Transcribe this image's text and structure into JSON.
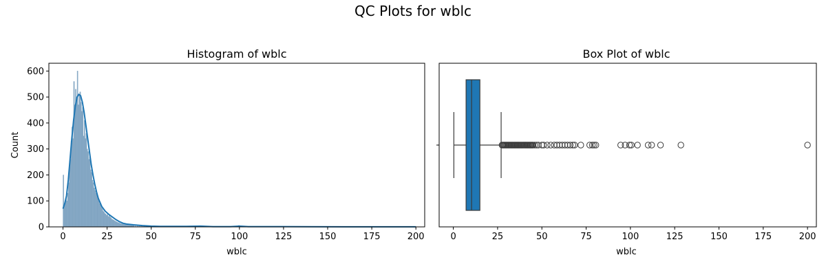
{
  "figure": {
    "suptitle": "QC Plots for wblc"
  },
  "chart_data": [
    {
      "type": "histogram",
      "title": "Histogram of wblc",
      "xlabel": "wblc",
      "ylabel": "Count",
      "xlim": [
        -8,
        205
      ],
      "ylim": [
        0,
        630
      ],
      "xticks": [
        0,
        25,
        50,
        75,
        100,
        125,
        150,
        175,
        200
      ],
      "yticks": [
        0,
        100,
        200,
        300,
        400,
        500,
        600
      ],
      "bar_color": "#7aa0bf",
      "kde_color": "#1f77b4",
      "bins": [
        {
          "x": 0.0,
          "count": 200
        },
        {
          "x": 0.5,
          "count": 85
        },
        {
          "x": 1.0,
          "count": 95
        },
        {
          "x": 1.5,
          "count": 110
        },
        {
          "x": 2.0,
          "count": 100
        },
        {
          "x": 2.5,
          "count": 130
        },
        {
          "x": 3.0,
          "count": 170
        },
        {
          "x": 3.5,
          "count": 230
        },
        {
          "x": 4.0,
          "count": 260
        },
        {
          "x": 4.5,
          "count": 330
        },
        {
          "x": 5.0,
          "count": 385
        },
        {
          "x": 5.5,
          "count": 340
        },
        {
          "x": 6.0,
          "count": 560
        },
        {
          "x": 6.5,
          "count": 470
        },
        {
          "x": 7.0,
          "count": 530
        },
        {
          "x": 7.5,
          "count": 500
        },
        {
          "x": 8.0,
          "count": 600
        },
        {
          "x": 8.5,
          "count": 470
        },
        {
          "x": 9.0,
          "count": 510
        },
        {
          "x": 9.5,
          "count": 520
        },
        {
          "x": 10.0,
          "count": 480
        },
        {
          "x": 10.5,
          "count": 445
        },
        {
          "x": 11.0,
          "count": 460
        },
        {
          "x": 11.5,
          "count": 350
        },
        {
          "x": 12.0,
          "count": 410
        },
        {
          "x": 12.5,
          "count": 340
        },
        {
          "x": 13.0,
          "count": 360
        },
        {
          "x": 13.5,
          "count": 300
        },
        {
          "x": 14.0,
          "count": 290
        },
        {
          "x": 14.5,
          "count": 260
        },
        {
          "x": 15.0,
          "count": 270
        },
        {
          "x": 15.5,
          "count": 220
        },
        {
          "x": 16.0,
          "count": 210
        },
        {
          "x": 16.5,
          "count": 180
        },
        {
          "x": 17.0,
          "count": 170
        },
        {
          "x": 17.5,
          "count": 150
        },
        {
          "x": 18.0,
          "count": 140
        },
        {
          "x": 18.5,
          "count": 130
        },
        {
          "x": 19.0,
          "count": 125
        },
        {
          "x": 19.5,
          "count": 110
        },
        {
          "x": 20.0,
          "count": 100
        },
        {
          "x": 20.5,
          "count": 90
        },
        {
          "x": 21.0,
          "count": 85
        },
        {
          "x": 21.5,
          "count": 75
        },
        {
          "x": 22.0,
          "count": 70
        },
        {
          "x": 22.5,
          "count": 62
        },
        {
          "x": 23.0,
          "count": 58
        },
        {
          "x": 23.5,
          "count": 52
        },
        {
          "x": 24.0,
          "count": 50
        },
        {
          "x": 24.5,
          "count": 45
        },
        {
          "x": 25.0,
          "count": 48
        },
        {
          "x": 25.5,
          "count": 40
        },
        {
          "x": 26.0,
          "count": 44
        },
        {
          "x": 26.5,
          "count": 38
        },
        {
          "x": 27.0,
          "count": 35
        },
        {
          "x": 27.5,
          "count": 30
        },
        {
          "x": 28.0,
          "count": 28
        },
        {
          "x": 28.5,
          "count": 26
        },
        {
          "x": 29.0,
          "count": 24
        },
        {
          "x": 29.5,
          "count": 22
        },
        {
          "x": 30.0,
          "count": 20
        },
        {
          "x": 30.5,
          "count": 18
        },
        {
          "x": 31.0,
          "count": 17
        },
        {
          "x": 31.5,
          "count": 15
        },
        {
          "x": 32.0,
          "count": 14
        },
        {
          "x": 32.5,
          "count": 13
        },
        {
          "x": 33.0,
          "count": 12
        },
        {
          "x": 33.5,
          "count": 11
        },
        {
          "x": 34.0,
          "count": 10
        },
        {
          "x": 34.5,
          "count": 10
        },
        {
          "x": 35.0,
          "count": 9
        },
        {
          "x": 35.5,
          "count": 9
        },
        {
          "x": 36.0,
          "count": 8
        },
        {
          "x": 36.5,
          "count": 8
        },
        {
          "x": 37.0,
          "count": 7
        },
        {
          "x": 37.5,
          "count": 7
        },
        {
          "x": 38.0,
          "count": 7
        },
        {
          "x": 38.5,
          "count": 6
        },
        {
          "x": 39.0,
          "count": 6
        },
        {
          "x": 39.5,
          "count": 6
        },
        {
          "x": 40.0,
          "count": 5
        },
        {
          "x": 41.0,
          "count": 5
        },
        {
          "x": 42.0,
          "count": 4
        },
        {
          "x": 43.0,
          "count": 4
        },
        {
          "x": 44.0,
          "count": 4
        },
        {
          "x": 45.0,
          "count": 3
        },
        {
          "x": 46.0,
          "count": 3
        },
        {
          "x": 47.0,
          "count": 3
        },
        {
          "x": 48.0,
          "count": 2
        },
        {
          "x": 49.0,
          "count": 2
        },
        {
          "x": 50.0,
          "count": 3
        },
        {
          "x": 52.0,
          "count": 2
        },
        {
          "x": 55.0,
          "count": 2
        },
        {
          "x": 58.0,
          "count": 2
        },
        {
          "x": 60.0,
          "count": 3
        },
        {
          "x": 63.0,
          "count": 2
        },
        {
          "x": 66.0,
          "count": 2
        },
        {
          "x": 70.0,
          "count": 1
        },
        {
          "x": 75.0,
          "count": 2
        },
        {
          "x": 78.0,
          "count": 3
        },
        {
          "x": 80.0,
          "count": 2
        },
        {
          "x": 95.0,
          "count": 1
        },
        {
          "x": 99.5,
          "count": 6
        },
        {
          "x": 104.0,
          "count": 1
        },
        {
          "x": 110.0,
          "count": 1
        },
        {
          "x": 112.0,
          "count": 1
        },
        {
          "x": 117.0,
          "count": 1
        },
        {
          "x": 128.0,
          "count": 1
        },
        {
          "x": 199.5,
          "count": 1
        }
      ],
      "bin_width": 0.5,
      "kde": [
        [
          0.0,
          70
        ],
        [
          1.0,
          90
        ],
        [
          2.0,
          120
        ],
        [
          3.0,
          180
        ],
        [
          4.0,
          260
        ],
        [
          5.0,
          340
        ],
        [
          6.0,
          410
        ],
        [
          7.0,
          465
        ],
        [
          8.0,
          500
        ],
        [
          9.0,
          510
        ],
        [
          10.0,
          505
        ],
        [
          11.0,
          480
        ],
        [
          12.0,
          440
        ],
        [
          13.0,
          390
        ],
        [
          14.0,
          340
        ],
        [
          15.0,
          290
        ],
        [
          16.0,
          240
        ],
        [
          17.0,
          200
        ],
        [
          18.0,
          165
        ],
        [
          19.0,
          135
        ],
        [
          20.0,
          110
        ],
        [
          22.0,
          78
        ],
        [
          24.0,
          60
        ],
        [
          26.0,
          48
        ],
        [
          28.0,
          38
        ],
        [
          30.0,
          28
        ],
        [
          32.0,
          20
        ],
        [
          34.0,
          14
        ],
        [
          36.0,
          11
        ],
        [
          40.0,
          8
        ],
        [
          45.0,
          5
        ],
        [
          50.0,
          3
        ],
        [
          55.0,
          2
        ],
        [
          60.0,
          2
        ],
        [
          70.0,
          2
        ],
        [
          78.0,
          3
        ],
        [
          85.0,
          1
        ],
        [
          95.0,
          1
        ],
        [
          100.0,
          3
        ],
        [
          105.0,
          1
        ],
        [
          115.0,
          1
        ],
        [
          125.0,
          1
        ],
        [
          140.0,
          0.5
        ],
        [
          160.0,
          0.3
        ],
        [
          180.0,
          0.3
        ],
        [
          200.0,
          0.3
        ]
      ]
    },
    {
      "type": "box",
      "title": "Box Plot of wblc",
      "xlabel": "wblc",
      "xlim": [
        -8,
        205
      ],
      "xticks": [
        0,
        25,
        50,
        75,
        100,
        125,
        150,
        175,
        200
      ],
      "box_color": "#1f77b4",
      "edge_color": "#3a3a3a",
      "stats": {
        "whislo": 0.3,
        "q1": 7.2,
        "median": 10.3,
        "q3": 15.0,
        "whishi": 27.0
      },
      "outliers": [
        27.5,
        28.0,
        28.5,
        29.0,
        29.5,
        30.0,
        30.5,
        31.0,
        31.5,
        32.0,
        32.5,
        33.0,
        33.5,
        34.0,
        34.5,
        35.0,
        35.5,
        36.0,
        36.5,
        37.0,
        37.5,
        38.0,
        38.5,
        39.0,
        39.5,
        40.0,
        40.5,
        41.0,
        41.5,
        42.0,
        42.5,
        43.0,
        43.5,
        44.0,
        44.5,
        45.0,
        46.0,
        47.0,
        48.0,
        50.0,
        51.0,
        53.0,
        55.0,
        57.0,
        58.5,
        60.0,
        61.5,
        63.0,
        64.5,
        66.0,
        67.5,
        68.5,
        72.0,
        77.0,
        78.5,
        79.5,
        80.5,
        94.5,
        97.0,
        99.5,
        100.5,
        104.0,
        110.0,
        112.0,
        117.0,
        128.5,
        200.0
      ]
    }
  ]
}
